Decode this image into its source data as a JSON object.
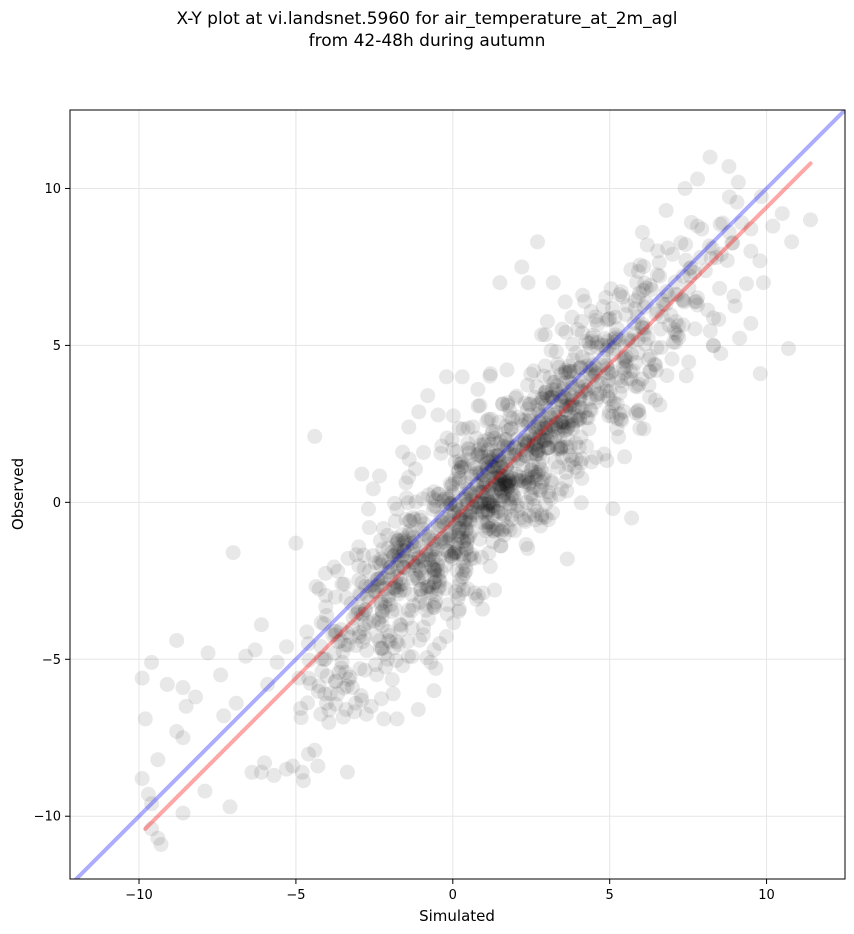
{
  "chart_data": {
    "type": "scatter",
    "title_lines": [
      "X-Y plot at vi.landsnet.5960 for air_temperature_at_2m_agl",
      "from 42-48h during autumn"
    ],
    "xlabel": "Simulated",
    "ylabel": "Observed",
    "xlim": [
      -12.2,
      12.5
    ],
    "ylim": [
      -12.0,
      12.5
    ],
    "xticks": [
      -10,
      -5,
      0,
      5,
      10
    ],
    "yticks": [
      -10,
      -5,
      0,
      5,
      10
    ],
    "grid": true,
    "point_color": "#000000",
    "point_opacity": 0.09,
    "identity_line": {
      "color": "#0000ff",
      "opacity": 0.32,
      "x": [
        -12.2,
        12.5
      ],
      "y": [
        -12.2,
        12.5
      ]
    },
    "regression_line": {
      "color": "#ff0000",
      "opacity": 0.35,
      "x": [
        -9.8,
        11.4
      ],
      "y": [
        -10.4,
        10.8
      ]
    },
    "sample_points": [
      [
        8.2,
        11.0
      ],
      [
        8.8,
        10.7
      ],
      [
        7.8,
        10.3
      ],
      [
        9.1,
        10.2
      ],
      [
        7.4,
        10.0
      ],
      [
        10.5,
        9.2
      ],
      [
        11.4,
        9.0
      ],
      [
        10.2,
        8.8
      ],
      [
        10.8,
        8.3
      ],
      [
        9.5,
        8.0
      ],
      [
        9.8,
        4.1
      ],
      [
        10.7,
        4.9
      ],
      [
        9.5,
        5.7
      ],
      [
        8.3,
        5.0
      ],
      [
        9.9,
        7.0
      ],
      [
        6.6,
        3.1
      ],
      [
        5.7,
        -0.5
      ],
      [
        5.1,
        -0.2
      ],
      [
        2.2,
        7.5
      ],
      [
        2.4,
        7.0
      ],
      [
        2.7,
        8.3
      ],
      [
        1.5,
        7.0
      ],
      [
        3.2,
        7.0
      ],
      [
        -0.2,
        4.0
      ],
      [
        0.3,
        4.0
      ],
      [
        -0.8,
        3.4
      ],
      [
        -1.4,
        2.4
      ],
      [
        -1.6,
        1.6
      ],
      [
        -2.9,
        0.9
      ],
      [
        -4.4,
        2.1
      ],
      [
        -7.0,
        -1.6
      ],
      [
        -5.0,
        -1.3
      ],
      [
        -8.8,
        -4.4
      ],
      [
        -7.8,
        -4.8
      ],
      [
        -9.6,
        -5.1
      ],
      [
        -9.9,
        -5.6
      ],
      [
        -9.1,
        -5.8
      ],
      [
        -8.6,
        -5.9
      ],
      [
        -8.5,
        -6.5
      ],
      [
        -8.2,
        -6.2
      ],
      [
        -9.8,
        -6.9
      ],
      [
        -8.8,
        -7.3
      ],
      [
        -8.6,
        -7.5
      ],
      [
        -9.4,
        -8.2
      ],
      [
        -7.9,
        -9.2
      ],
      [
        -8.6,
        -9.9
      ],
      [
        -7.1,
        -9.7
      ],
      [
        -9.9,
        -8.8
      ],
      [
        -9.7,
        -9.3
      ],
      [
        -9.6,
        -9.6
      ],
      [
        -9.6,
        -10.4
      ],
      [
        -9.4,
        -10.7
      ],
      [
        -9.3,
        -10.9
      ],
      [
        -7.3,
        -6.8
      ],
      [
        -6.9,
        -6.4
      ],
      [
        -7.4,
        -5.5
      ],
      [
        -6.1,
        -3.9
      ],
      [
        -6.3,
        -4.7
      ],
      [
        -5.6,
        -5.1
      ],
      [
        -6.6,
        -4.9
      ],
      [
        -5.9,
        -5.8
      ],
      [
        -4.9,
        -5.6
      ],
      [
        -4.6,
        -4.5
      ],
      [
        -5.3,
        -4.6
      ],
      [
        -6.4,
        -8.6
      ],
      [
        -6.1,
        -8.6
      ],
      [
        -6.0,
        -8.3
      ],
      [
        -5.7,
        -8.7
      ],
      [
        -5.1,
        -8.4
      ],
      [
        -5.3,
        -8.5
      ],
      [
        -4.8,
        -8.6
      ],
      [
        -4.3,
        -8.4
      ],
      [
        -4.4,
        -7.9
      ],
      [
        -3.4,
        -6.6
      ],
      [
        -3.1,
        -6.4
      ],
      [
        -2.9,
        -6.3
      ],
      [
        -3.2,
        -5.9
      ],
      [
        -2.6,
        -6.5
      ],
      [
        -2.2,
        -6.9
      ],
      [
        -1.9,
        -6.1
      ],
      [
        -1.1,
        -6.6
      ],
      [
        -0.6,
        -6.0
      ],
      [
        -0.7,
        -5.1
      ],
      [
        -0.6,
        -4.7
      ],
      [
        -1.6,
        -5.2
      ],
      [
        3.8,
        5.9
      ],
      [
        4.2,
        6.4
      ],
      [
        3.3,
        4.8
      ],
      [
        1.2,
        4.1
      ],
      [
        0.8,
        3.6
      ],
      [
        6.8,
        9.3
      ],
      [
        6.2,
        8.2
      ],
      [
        7.0,
        7.9
      ],
      [
        8.6,
        8.9
      ],
      [
        8.4,
        7.8
      ]
    ]
  }
}
